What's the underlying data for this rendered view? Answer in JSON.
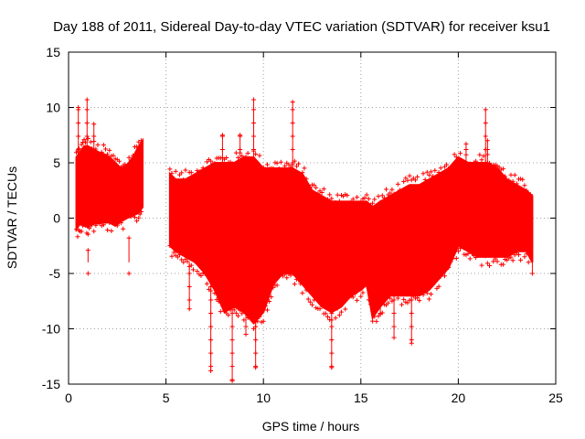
{
  "chart_data": {
    "type": "scatter",
    "title": "Day 188 of 2011, Sidereal Day-to-day VTEC variation (SDTVAR) for receiver ksu1",
    "xlabel": "GPS time / hours",
    "ylabel": "SDTVAR / TECUs",
    "xlim": [
      0,
      25
    ],
    "ylim": [
      -15,
      15
    ],
    "x_ticks": [
      0,
      5,
      10,
      15,
      20,
      25
    ],
    "x_tick_labels": [
      "0",
      "5",
      "10",
      "15",
      "20",
      "25"
    ],
    "y_ticks": [
      -15,
      -10,
      -5,
      0,
      5,
      10,
      15
    ],
    "y_tick_labels": [
      "-15",
      "-10",
      "-5",
      "0",
      "5",
      "10",
      "15"
    ],
    "grid": true,
    "marker": "+",
    "color": "#ff0000",
    "series": [
      {
        "name": "SDTVAR",
        "envelope": [
          {
            "x": 0.4,
            "ymin": -1.0,
            "ymax": 5.5
          },
          {
            "x": 0.6,
            "ymin": -0.5,
            "ymax": 6.0
          },
          {
            "x": 0.8,
            "ymin": -0.7,
            "ymax": 6.5
          },
          {
            "x": 1.0,
            "ymin": -0.8,
            "ymax": 6.5
          },
          {
            "x": 1.2,
            "ymin": -0.5,
            "ymax": 6.3
          },
          {
            "x": 1.5,
            "ymin": -0.5,
            "ymax": 6.0
          },
          {
            "x": 1.8,
            "ymin": -0.4,
            "ymax": 5.8
          },
          {
            "x": 2.1,
            "ymin": -0.4,
            "ymax": 5.5
          },
          {
            "x": 2.4,
            "ymin": -0.7,
            "ymax": 5.0
          },
          {
            "x": 2.7,
            "ymin": -0.3,
            "ymax": 4.5
          },
          {
            "x": 3.0,
            "ymin": 0.0,
            "ymax": 4.8
          },
          {
            "x": 3.3,
            "ymin": 0.2,
            "ymax": 5.5
          },
          {
            "x": 3.6,
            "ymin": 0.5,
            "ymax": 6.5
          },
          {
            "x": 3.8,
            "ymin": 1.0,
            "ymax": 7.0
          },
          {
            "x": 5.2,
            "ymin": -2.5,
            "ymax": 4.0
          },
          {
            "x": 5.5,
            "ymin": -3.0,
            "ymax": 3.5
          },
          {
            "x": 6.0,
            "ymin": -3.5,
            "ymax": 3.5
          },
          {
            "x": 6.5,
            "ymin": -4.0,
            "ymax": 4.0
          },
          {
            "x": 7.0,
            "ymin": -5.0,
            "ymax": 4.5
          },
          {
            "x": 7.5,
            "ymin": -6.5,
            "ymax": 5.0
          },
          {
            "x": 8.0,
            "ymin": -8.5,
            "ymax": 5.0
          },
          {
            "x": 8.5,
            "ymin": -8.0,
            "ymax": 5.0
          },
          {
            "x": 9.0,
            "ymin": -8.5,
            "ymax": 5.5
          },
          {
            "x": 9.5,
            "ymin": -9.5,
            "ymax": 5.5
          },
          {
            "x": 10.0,
            "ymin": -8.5,
            "ymax": 4.5
          },
          {
            "x": 10.5,
            "ymin": -6.0,
            "ymax": 4.5
          },
          {
            "x": 11.0,
            "ymin": -5.0,
            "ymax": 4.5
          },
          {
            "x": 11.5,
            "ymin": -5.0,
            "ymax": 4.5
          },
          {
            "x": 12.0,
            "ymin": -6.0,
            "ymax": 4.0
          },
          {
            "x": 12.5,
            "ymin": -7.0,
            "ymax": 2.5
          },
          {
            "x": 13.0,
            "ymin": -8.0,
            "ymax": 2.0
          },
          {
            "x": 13.5,
            "ymin": -8.5,
            "ymax": 1.5
          },
          {
            "x": 14.0,
            "ymin": -8.0,
            "ymax": 1.5
          },
          {
            "x": 14.5,
            "ymin": -7.0,
            "ymax": 1.5
          },
          {
            "x": 15.0,
            "ymin": -6.5,
            "ymax": 1.5
          },
          {
            "x": 15.3,
            "ymin": -6.0,
            "ymax": 1.5
          },
          {
            "x": 15.6,
            "ymin": -9.0,
            "ymax": 1.0
          },
          {
            "x": 16.0,
            "ymin": -8.0,
            "ymax": 1.5
          },
          {
            "x": 16.5,
            "ymin": -7.0,
            "ymax": 2.0
          },
          {
            "x": 17.0,
            "ymin": -7.0,
            "ymax": 2.5
          },
          {
            "x": 17.5,
            "ymin": -7.0,
            "ymax": 3.0
          },
          {
            "x": 18.0,
            "ymin": -7.0,
            "ymax": 3.0
          },
          {
            "x": 18.5,
            "ymin": -6.5,
            "ymax": 3.5
          },
          {
            "x": 19.0,
            "ymin": -5.5,
            "ymax": 4.0
          },
          {
            "x": 19.5,
            "ymin": -4.5,
            "ymax": 4.5
          },
          {
            "x": 20.0,
            "ymin": -2.5,
            "ymax": 5.5
          },
          {
            "x": 20.5,
            "ymin": -3.0,
            "ymax": 5.0
          },
          {
            "x": 21.0,
            "ymin": -3.5,
            "ymax": 5.0
          },
          {
            "x": 21.5,
            "ymin": -3.5,
            "ymax": 5.0
          },
          {
            "x": 22.0,
            "ymin": -3.5,
            "ymax": 4.5
          },
          {
            "x": 22.5,
            "ymin": -3.5,
            "ymax": 3.5
          },
          {
            "x": 23.0,
            "ymin": -3.0,
            "ymax": 3.0
          },
          {
            "x": 23.5,
            "ymin": -3.0,
            "ymax": 2.5
          },
          {
            "x": 23.8,
            "ymin": -4.0,
            "ymax": 2.0
          }
        ],
        "spikes": [
          {
            "x": 0.5,
            "y": 10.0
          },
          {
            "x": 0.95,
            "y": 10.7
          },
          {
            "x": 1.0,
            "y": -2.9
          },
          {
            "x": 1.3,
            "y": 8.5
          },
          {
            "x": 3.1,
            "y": -1.8
          },
          {
            "x": 6.2,
            "y": -8.2
          },
          {
            "x": 7.3,
            "y": -13.8
          },
          {
            "x": 7.9,
            "y": 7.5
          },
          {
            "x": 8.4,
            "y": -14.7
          },
          {
            "x": 8.8,
            "y": 7.5
          },
          {
            "x": 9.1,
            "y": -10.5
          },
          {
            "x": 9.5,
            "y": 10.7
          },
          {
            "x": 9.6,
            "y": -13.5
          },
          {
            "x": 11.5,
            "y": 10.5
          },
          {
            "x": 13.5,
            "y": -13.5
          },
          {
            "x": 16.0,
            "y": -8.7
          },
          {
            "x": 16.7,
            "y": -10.8
          },
          {
            "x": 17.6,
            "y": -11.3
          },
          {
            "x": 20.4,
            "y": 6.7
          },
          {
            "x": 21.4,
            "y": 9.8
          },
          {
            "x": 21.5,
            "y": 7.0
          },
          {
            "x": 23.8,
            "y": -5.0
          }
        ]
      }
    ]
  }
}
